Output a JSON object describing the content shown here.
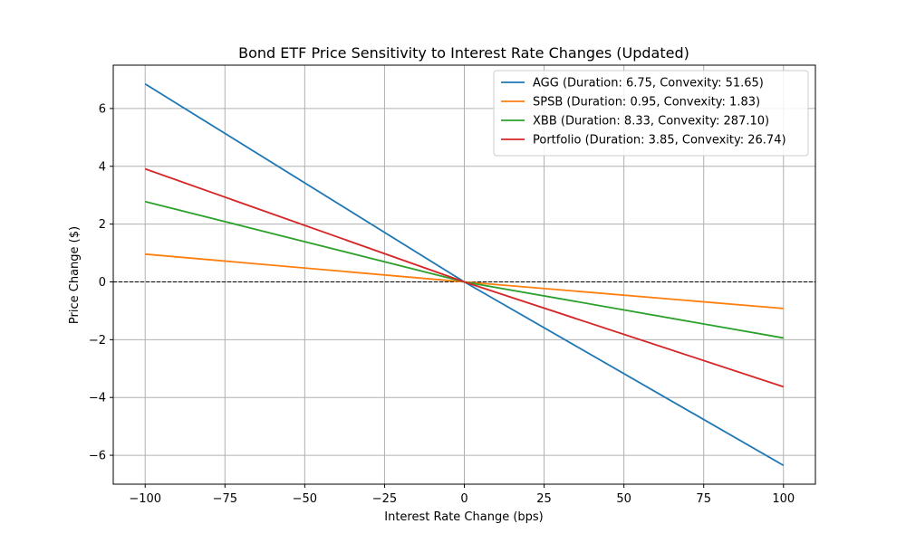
{
  "chart_data": {
    "type": "line",
    "title": "Bond ETF Price Sensitivity to Interest Rate Changes (Updated)",
    "xlabel": "Interest Rate Change (bps)",
    "ylabel": "Price Change ($)",
    "xlim": [
      -110,
      110
    ],
    "ylim": [
      -7,
      7.5
    ],
    "xticks": [
      -100,
      -75,
      -50,
      -25,
      0,
      25,
      50,
      75,
      100
    ],
    "xtick_labels": [
      "−100",
      "−75",
      "−50",
      "−25",
      "0",
      "25",
      "50",
      "75",
      "100"
    ],
    "yticks": [
      -6,
      -4,
      -2,
      0,
      2,
      4,
      6
    ],
    "ytick_labels": [
      "−6",
      "−4",
      "−2",
      "0",
      "2",
      "4",
      "6"
    ],
    "grid": true,
    "legend_position": "top-right",
    "reference_line": {
      "y": 0,
      "style": "dashed",
      "color": "#000000"
    },
    "x": [
      -100,
      0,
      100
    ],
    "series": [
      {
        "name": "AGG (Duration: 6.75, Convexity: 51.65)",
        "color": "#1f77b4",
        "values": [
          6.85,
          0,
          -6.35
        ]
      },
      {
        "name": "SPSB (Duration: 0.95, Convexity: 1.83)",
        "color": "#ff7f0e",
        "values": [
          0.96,
          0,
          -0.92
        ]
      },
      {
        "name": "XBB (Duration: 8.33, Convexity: 287.10)",
        "color": "#2ca02c",
        "values": [
          2.78,
          0,
          -1.94
        ]
      },
      {
        "name": "Portfolio (Duration: 3.85, Convexity: 26.74)",
        "color": "#d62728",
        "values": [
          3.91,
          0,
          -3.63
        ]
      }
    ]
  }
}
